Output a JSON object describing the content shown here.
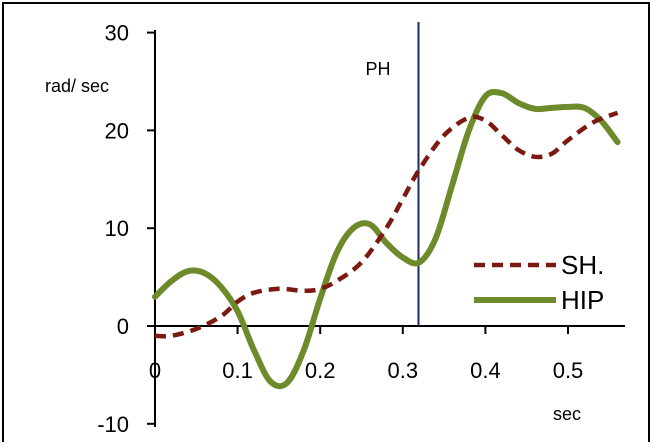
{
  "chart_data": {
    "type": "line",
    "ylabel": "rad/ sec",
    "xlabel": "sec",
    "xlim": [
      0,
      0.57
    ],
    "ylim": [
      -10,
      30
    ],
    "x_ticks": [
      0,
      0.1,
      0.2,
      0.3,
      0.4,
      0.5
    ],
    "x_tick_labels": [
      "0",
      "0.1",
      "0.2",
      "0.3",
      "0.4",
      "0.5"
    ],
    "y_ticks": [
      -10,
      0,
      10,
      20,
      30
    ],
    "y_tick_labels": [
      "-10",
      "0",
      "10",
      "20",
      "30"
    ],
    "grid": false,
    "legend_position": "lower-right",
    "annotation": {
      "label": "PH",
      "x": 0.319
    },
    "series": [
      {
        "name": "SH.",
        "style": "dashed",
        "color": "#7b1a10",
        "x": [
          0,
          0.02,
          0.05,
          0.08,
          0.1,
          0.12,
          0.15,
          0.18,
          0.2,
          0.22,
          0.25,
          0.28,
          0.3,
          0.32,
          0.35,
          0.38,
          0.4,
          0.42,
          0.44,
          0.46,
          0.48,
          0.5,
          0.53,
          0.56
        ],
        "y": [
          -1,
          -1,
          -0.3,
          1,
          2.5,
          3.4,
          3.8,
          3.6,
          3.8,
          4.6,
          6.5,
          10,
          13,
          16,
          19.5,
          21.3,
          21,
          19.5,
          18,
          17.3,
          17.6,
          19,
          20.8,
          21.8
        ]
      },
      {
        "name": "HIP",
        "style": "solid",
        "color": "#6e8b2c",
        "x": [
          0,
          0.02,
          0.04,
          0.06,
          0.08,
          0.1,
          0.12,
          0.14,
          0.16,
          0.18,
          0.2,
          0.22,
          0.24,
          0.26,
          0.28,
          0.3,
          0.32,
          0.34,
          0.36,
          0.38,
          0.4,
          0.42,
          0.44,
          0.46,
          0.48,
          0.5,
          0.52,
          0.54,
          0.56
        ],
        "y": [
          3,
          4.6,
          5.6,
          5.4,
          4,
          1.5,
          -2.5,
          -5.7,
          -5.8,
          -2.5,
          2.8,
          7.5,
          10,
          10.4,
          8.5,
          7,
          6.5,
          9,
          14.5,
          20,
          23.5,
          23.8,
          22.8,
          22.2,
          22.3,
          22.4,
          22.3,
          21,
          18.8
        ]
      }
    ]
  }
}
